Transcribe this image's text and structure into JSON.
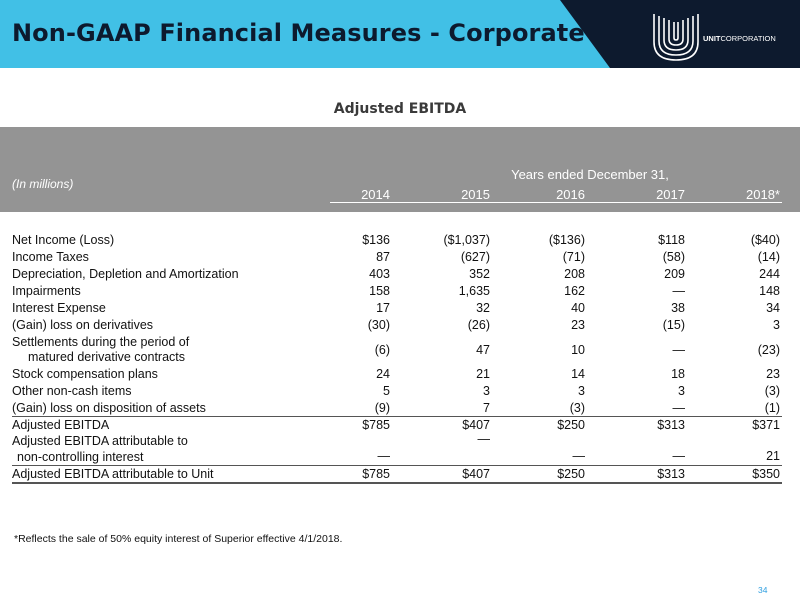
{
  "header": {
    "title": "Non-GAAP Financial Measures - Corporate",
    "logo_text_bold": "UNIT",
    "logo_text_regular": "CORPORATION"
  },
  "table": {
    "title": "Adjusted EBITDA",
    "units_label": "(In millions)",
    "period_label": "Years ended December 31,",
    "years": [
      "2014",
      "2015",
      "2016",
      "2017",
      "2018*"
    ],
    "rows": [
      {
        "label": "Net Income (Loss)",
        "values": [
          "$136",
          "($1,037)",
          "($136)",
          "$118",
          "($40)"
        ]
      },
      {
        "label": "Income Taxes",
        "values": [
          "87",
          "(627)",
          "(71)",
          "(58)",
          "(14)"
        ]
      },
      {
        "label": "Depreciation, Depletion and Amortization",
        "values": [
          "403",
          "352",
          "208",
          "209",
          "244"
        ]
      },
      {
        "label": "Impairments",
        "values": [
          "158",
          "1,635",
          "162",
          "—",
          "148"
        ]
      },
      {
        "label": "Interest Expense",
        "values": [
          "17",
          "32",
          "40",
          "38",
          "34"
        ]
      },
      {
        "label": "(Gain) loss on derivatives",
        "values": [
          "(30)",
          "(26)",
          "23",
          "(15)",
          "3"
        ]
      },
      {
        "label": "Settlements during the period of",
        "label_line2": "matured derivative contracts",
        "values": [
          "(6)",
          "47",
          "10",
          "—",
          "(23)"
        ]
      },
      {
        "label": "Stock compensation plans",
        "values": [
          "24",
          "21",
          "14",
          "18",
          "23"
        ]
      },
      {
        "label": "Other non-cash items",
        "values": [
          "5",
          "3",
          "3",
          "3",
          "(3)"
        ]
      },
      {
        "label": "(Gain) loss on disposition of assets",
        "values": [
          "(9)",
          "7",
          "(3)",
          "—",
          "(1)"
        ]
      },
      {
        "label": "Adjusted EBITDA",
        "values": [
          "$785",
          "$407",
          "$250",
          "$313",
          "$371"
        ]
      },
      {
        "label": "Adjusted EBITDA attributable to",
        "label_line2": "non-controlling interest",
        "values": [
          "—",
          "—",
          "—",
          "—",
          "21"
        ]
      },
      {
        "label": "Adjusted EBITDA attributable to Unit",
        "values": [
          "$785",
          "$407",
          "$250",
          "$313",
          "$350"
        ]
      }
    ]
  },
  "footnote": "*Reflects the sale of 50% equity interest of Superior effective 4/1/2018.",
  "page_number": "34",
  "colors": {
    "header_light": "#41c0e6",
    "header_dark": "#0d1a2e",
    "grey_band": "#949494",
    "page_number": "#2f9fe0"
  }
}
